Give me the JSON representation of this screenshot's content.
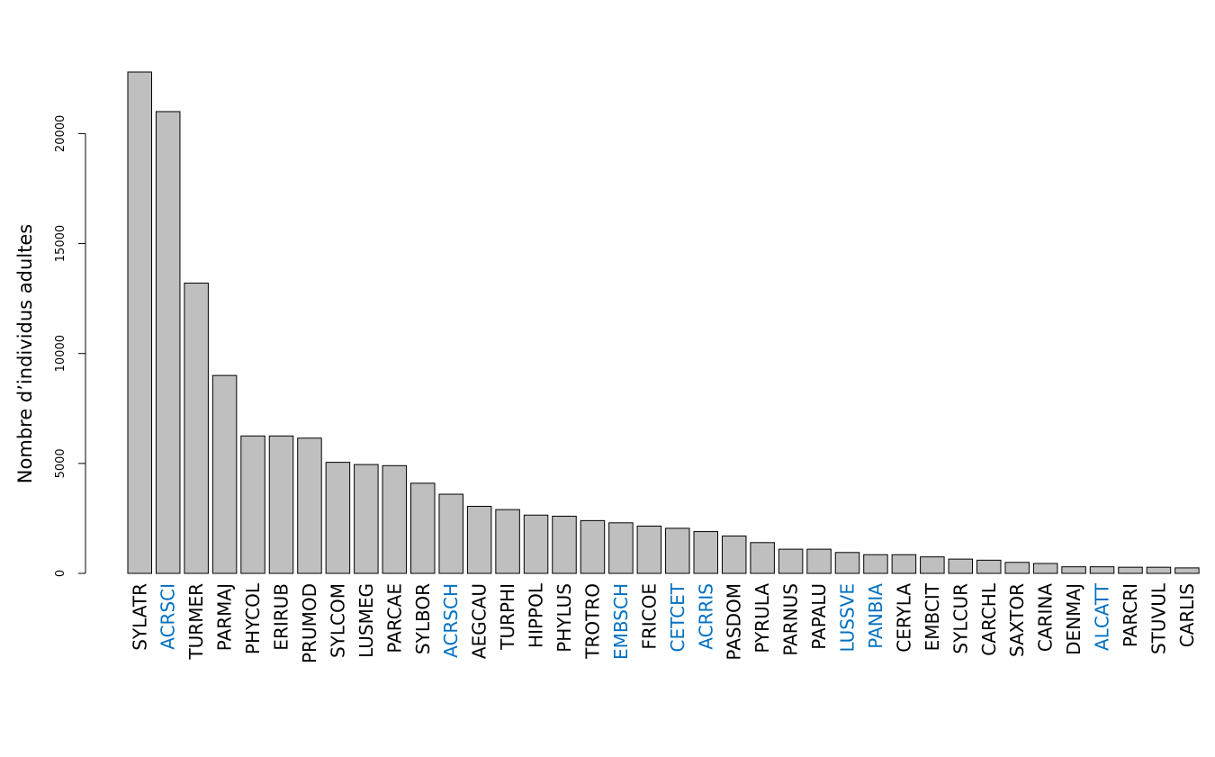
{
  "chart_data": {
    "type": "bar",
    "title": "",
    "xlabel": "",
    "ylabel": "Nombre d’individus adultes",
    "ylim": [
      0,
      22800
    ],
    "yticks": [
      0,
      5000,
      10000,
      15000,
      20000
    ],
    "grid": false,
    "bar_color": "#bfbfbf",
    "highlight_color": "#0070c0",
    "label_color": "#000000",
    "categories": [
      "SYLATR",
      "ACRSCI",
      "TURMER",
      "PARMAJ",
      "PHYCOL",
      "ERIRUB",
      "PRUMOD",
      "SYLCOM",
      "LUSMEG",
      "PARCAE",
      "SYLBOR",
      "ACRSCH",
      "AEGCAU",
      "TURPHI",
      "HIPPOL",
      "PHYLUS",
      "TROTRO",
      "EMBSCH",
      "FRICOE",
      "CETCET",
      "ACRRIS",
      "PASDOM",
      "PYRULA",
      "PARNUS",
      "PAPALU",
      "LUSSVE",
      "PANBIA",
      "CERYLA",
      "EMBCIT",
      "SYLCUR",
      "CARCHL",
      "SAXTOR",
      "CARINA",
      "DENMAJ",
      "ALCATT",
      "PARCRI",
      "STUVUL",
      "CARLIS"
    ],
    "values": [
      22800,
      21000,
      13200,
      9000,
      6250,
      6250,
      6150,
      5050,
      4950,
      4900,
      4100,
      3600,
      3050,
      2900,
      2650,
      2600,
      2400,
      2300,
      2150,
      2050,
      1900,
      1700,
      1400,
      1100,
      1100,
      950,
      850,
      850,
      750,
      650,
      600,
      500,
      450,
      300,
      300,
      280,
      280,
      250
    ],
    "highlighted": [
      "ACRSCI",
      "ACRSCH",
      "EMBSCH",
      "CETCET",
      "ACRRIS",
      "LUSSVE",
      "PANBIA",
      "ALCATT"
    ]
  }
}
